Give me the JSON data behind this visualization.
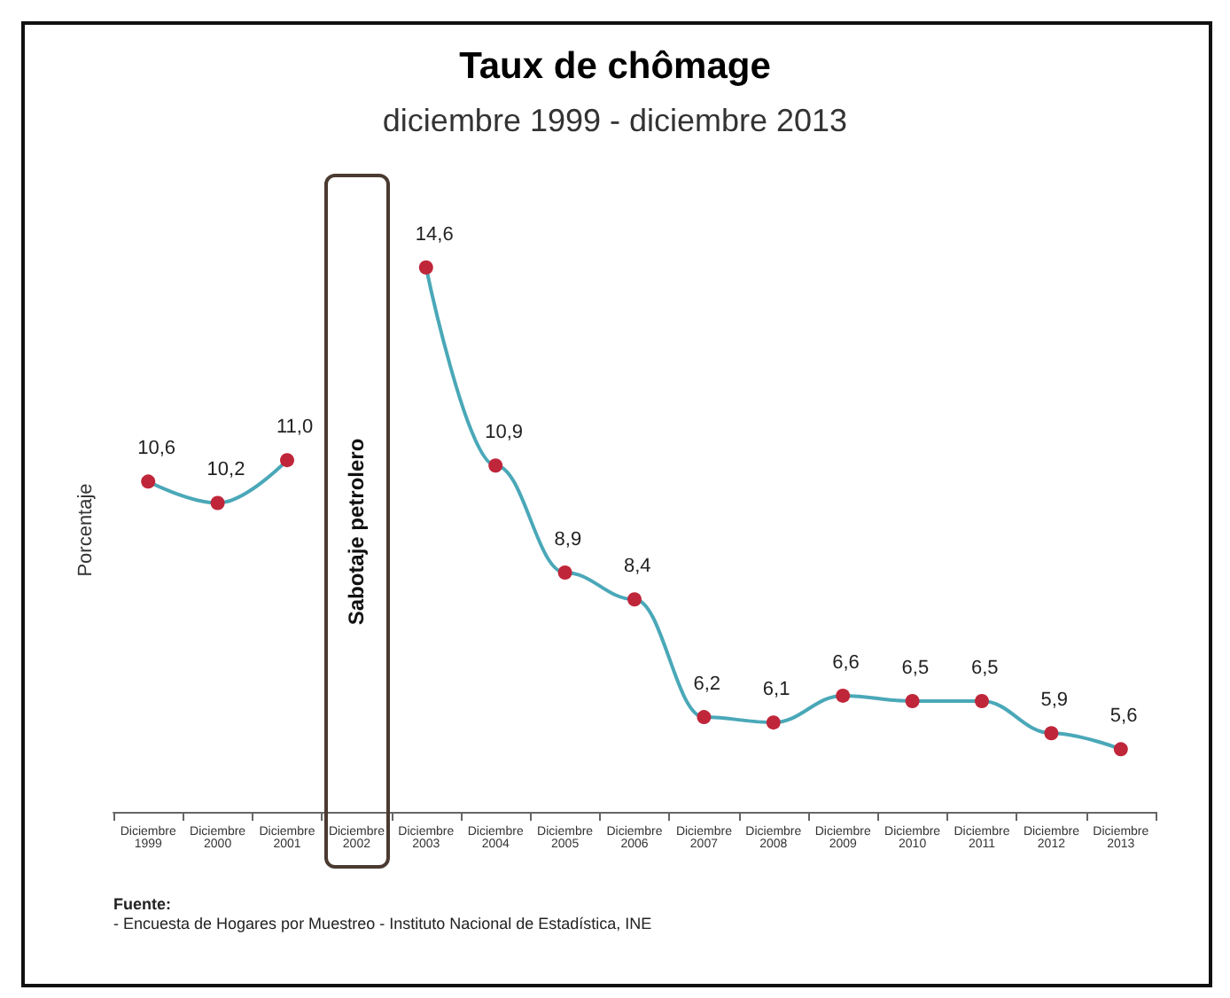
{
  "chart_data": {
    "type": "line",
    "title": "Taux de chômage",
    "subtitle": "diciembre 1999 - diciembre 2013",
    "ylabel": "Porcentaje",
    "categories": [
      "Diciembre 1999",
      "Diciembre 2000",
      "Diciembre 2001",
      "Diciembre 2002",
      "Diciembre 2003",
      "Diciembre 2004",
      "Diciembre 2005",
      "Diciembre 2006",
      "Diciembre 2007",
      "Diciembre 2008",
      "Diciembre 2009",
      "Diciembre 2010",
      "Diciembre 2011",
      "Diciembre 2012",
      "Diciembre 2013"
    ],
    "series": [
      {
        "color": "#4aa8b8",
        "colors": [
          "#c0263a",
          "#c0263a",
          "#c0263a",
          null,
          "#c0263a",
          "#c0263a",
          "#c0263a",
          "#c0263a",
          "#c0263a",
          "#c0263a",
          "#c0263a",
          "#c0263a",
          "#c0263a",
          "#c0263a",
          "#c0263a"
        ],
        "values": [
          10.6,
          10.2,
          11.0,
          null,
          14.6,
          10.9,
          8.9,
          8.4,
          6.2,
          6.1,
          6.6,
          6.5,
          6.5,
          5.9,
          5.6
        ],
        "value_labels": [
          "10,6",
          "10,2",
          "11,0",
          null,
          "14,6",
          "10,9",
          "8,9",
          "8,4",
          "6,2",
          "6,1",
          "6,6",
          "6,5",
          "6,5",
          "5,9",
          "5,6"
        ]
      }
    ],
    "annotations": [
      "Sabotaje petrolero",
      "Fuente:",
      "- Encuesta de Hogares por Muestreo - Instituto Nacional de Estadística, INE"
    ],
    "marker": "circle",
    "line_style": "solid",
    "grid": false,
    "legend": false
  }
}
